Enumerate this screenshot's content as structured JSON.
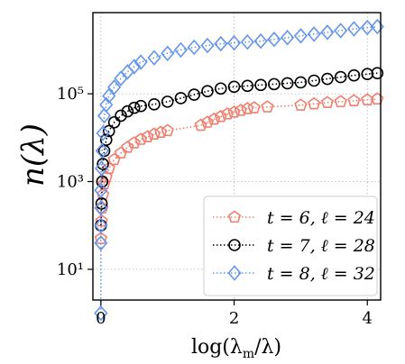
{
  "chart_data": {
    "type": "scatter",
    "title": "",
    "xlabel": "log(λm/λ)",
    "ylabel": "n(λ)",
    "xlim": [
      -0.12,
      4.2
    ],
    "ylim_log10": [
      0.3,
      6.85
    ],
    "y_scale": "log",
    "x_ticks": [
      {
        "v": 0,
        "label": "0"
      },
      {
        "v": 2,
        "label": "2"
      },
      {
        "v": 4,
        "label": "4"
      }
    ],
    "y_ticks": [
      {
        "e": 1,
        "label": "10¹"
      },
      {
        "e": 3,
        "label": "10³"
      },
      {
        "e": 5,
        "label": "10⁵"
      }
    ],
    "grid": true,
    "legend_position": "bottom-right",
    "series": [
      {
        "name": "t = 6, ℓ = 24",
        "color": "#f07f6f",
        "marker": "pentagon",
        "points": [
          [
            0.0,
            1.7
          ],
          [
            0.01,
            2.1
          ],
          [
            0.02,
            2.4
          ],
          [
            0.03,
            2.7
          ],
          [
            0.05,
            2.95
          ],
          [
            0.08,
            3.1
          ],
          [
            0.12,
            3.3
          ],
          [
            0.2,
            3.5
          ],
          [
            0.3,
            3.65
          ],
          [
            0.4,
            3.78
          ],
          [
            0.5,
            3.88
          ],
          [
            0.6,
            3.96
          ],
          [
            0.7,
            4.02
          ],
          [
            0.8,
            4.08
          ],
          [
            0.9,
            4.12
          ],
          [
            1.0,
            4.16
          ],
          [
            1.5,
            4.28
          ],
          [
            1.6,
            4.35
          ],
          [
            1.7,
            4.42
          ],
          [
            1.8,
            4.48
          ],
          [
            1.9,
            4.54
          ],
          [
            2.0,
            4.58
          ],
          [
            2.1,
            4.62
          ],
          [
            2.2,
            4.66
          ],
          [
            2.3,
            4.68
          ],
          [
            2.5,
            4.7
          ],
          [
            3.0,
            4.74
          ],
          [
            3.2,
            4.77
          ],
          [
            3.4,
            4.8
          ],
          [
            3.6,
            4.82
          ],
          [
            3.8,
            4.84
          ],
          [
            4.0,
            4.86
          ],
          [
            4.15,
            4.88
          ]
        ]
      },
      {
        "name": "t = 7, ℓ = 28",
        "color": "#000000",
        "marker": "circle",
        "points": [
          [
            0.0,
            2.0
          ],
          [
            0.01,
            2.5
          ],
          [
            0.02,
            3.0
          ],
          [
            0.03,
            3.4
          ],
          [
            0.05,
            3.7
          ],
          [
            0.08,
            3.95
          ],
          [
            0.12,
            4.15
          ],
          [
            0.2,
            4.35
          ],
          [
            0.3,
            4.5
          ],
          [
            0.4,
            4.6
          ],
          [
            0.5,
            4.68
          ],
          [
            0.6,
            4.72
          ],
          [
            0.8,
            4.76
          ],
          [
            1.0,
            4.82
          ],
          [
            1.2,
            4.9
          ],
          [
            1.4,
            4.98
          ],
          [
            1.6,
            5.06
          ],
          [
            1.8,
            5.12
          ],
          [
            2.0,
            5.16
          ],
          [
            2.2,
            5.18
          ],
          [
            2.4,
            5.2
          ],
          [
            2.6,
            5.22
          ],
          [
            2.8,
            5.24
          ],
          [
            3.0,
            5.26
          ],
          [
            3.2,
            5.3
          ],
          [
            3.4,
            5.34
          ],
          [
            3.6,
            5.38
          ],
          [
            3.8,
            5.42
          ],
          [
            4.0,
            5.45
          ],
          [
            4.15,
            5.47
          ]
        ]
      },
      {
        "name": "t = 8, ℓ = 32",
        "color": "#6495ed",
        "marker": "diamond",
        "points": [
          [
            0.0,
            0.0
          ],
          [
            0.0,
            1.6
          ],
          [
            0.0,
            2.0
          ],
          [
            0.0,
            2.4
          ],
          [
            0.0,
            2.8
          ],
          [
            0.01,
            3.3
          ],
          [
            0.02,
            3.7
          ],
          [
            0.03,
            4.1
          ],
          [
            0.05,
            4.5
          ],
          [
            0.08,
            4.75
          ],
          [
            0.12,
            4.95
          ],
          [
            0.2,
            5.15
          ],
          [
            0.3,
            5.35
          ],
          [
            0.4,
            5.5
          ],
          [
            0.5,
            5.62
          ],
          [
            0.6,
            5.72
          ],
          [
            0.8,
            5.82
          ],
          [
            1.0,
            5.92
          ],
          [
            1.2,
            6.0
          ],
          [
            1.4,
            6.06
          ],
          [
            1.6,
            6.1
          ],
          [
            1.8,
            6.14
          ],
          [
            2.0,
            6.16
          ],
          [
            2.2,
            6.18
          ],
          [
            2.4,
            6.2
          ],
          [
            2.6,
            6.24
          ],
          [
            2.8,
            6.28
          ],
          [
            3.0,
            6.32
          ],
          [
            3.2,
            6.36
          ],
          [
            3.4,
            6.4
          ],
          [
            3.6,
            6.44
          ],
          [
            3.8,
            6.48
          ],
          [
            4.0,
            6.51
          ],
          [
            4.15,
            6.53
          ]
        ]
      }
    ]
  }
}
